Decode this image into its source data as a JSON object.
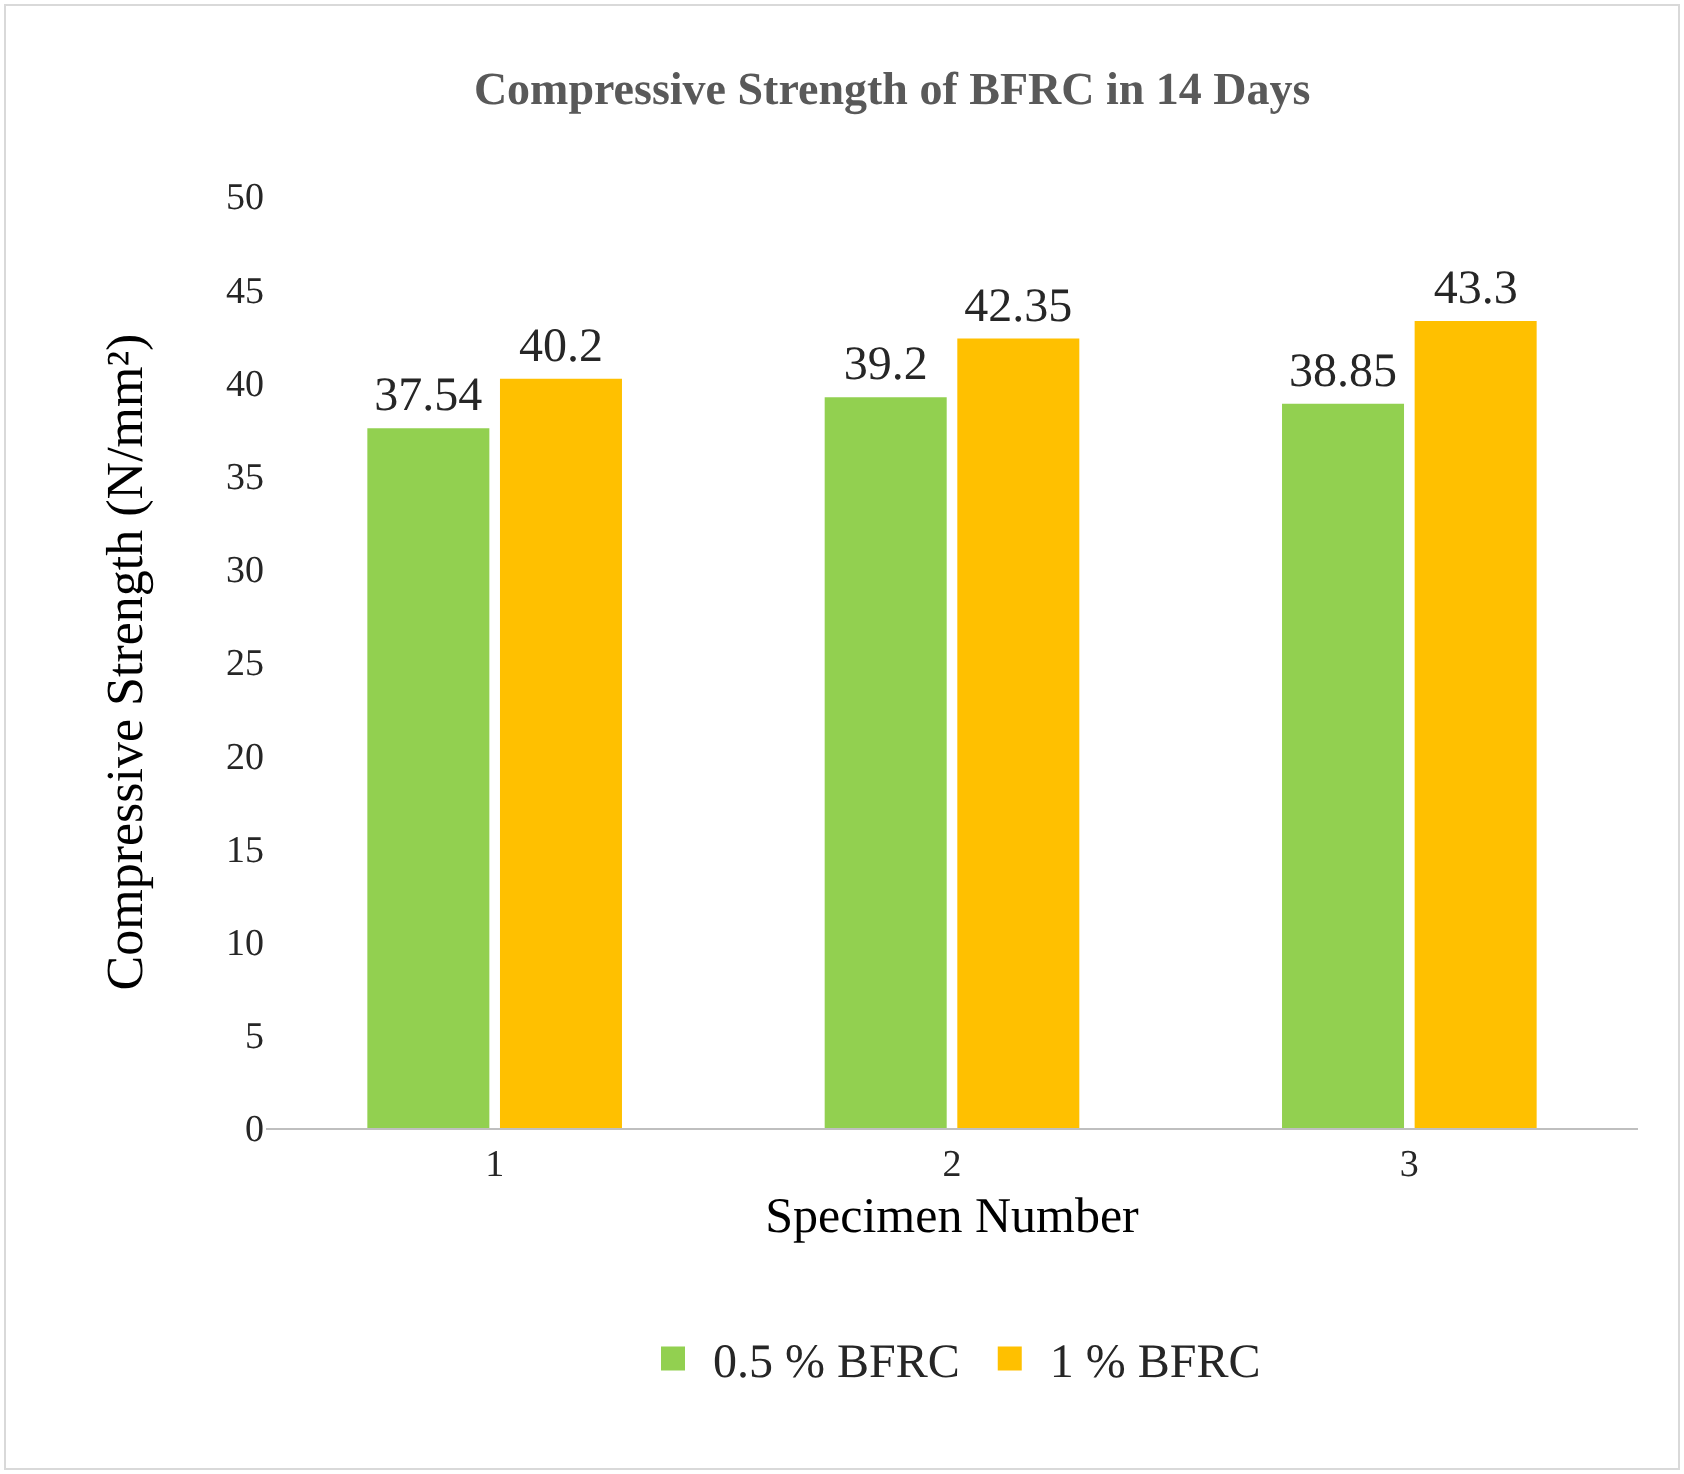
{
  "chart_data": {
    "type": "bar",
    "title": "Compressive Strength of BFRC in 14 Days",
    "xlabel": "Specimen Number",
    "ylabel": "Compressive Strength (N/mm²)",
    "categories": [
      "1",
      "2",
      "3"
    ],
    "series": [
      {
        "name": "0.5 % BFRC",
        "color": "#92d050",
        "values": [
          37.54,
          39.2,
          38.85
        ]
      },
      {
        "name": "1 % BFRC",
        "color": "#ffc000",
        "values": [
          40.2,
          42.35,
          43.3
        ]
      }
    ],
    "ylim": [
      0,
      50
    ],
    "yticks": [
      0,
      5,
      10,
      15,
      20,
      25,
      30,
      35,
      40,
      45,
      50
    ],
    "grid": false,
    "legend": "bottom",
    "data_labels": true
  }
}
